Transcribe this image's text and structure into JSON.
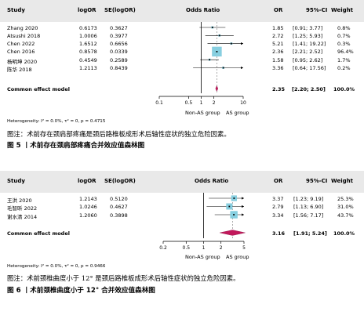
{
  "plots": [
    {
      "headers": {
        "study": "Study",
        "est": "logOR",
        "se": "SE(logOR)",
        "title": "Odds Ratio",
        "or": "OR",
        "ci": "95%-CI",
        "weight": "Weight"
      },
      "summary": {
        "label": "Common effect model",
        "or": "2.35",
        "ci": "[2.20; 2.50]",
        "weight": "100.0%"
      },
      "heterogeneity": "Heterogeneity: I² = 0.0%, τ² = 0, p = 0.4715",
      "axis_ticks": [
        "0.1",
        "0.5",
        "1",
        "2",
        "10"
      ],
      "group_left": "Non-AS group",
      "group_right": "AS group",
      "caption_note": "图注：术前存在颈肩部疼痛是颈后路椎板成形术后轴性症状的独立危险因素。",
      "fig_title": "图 5 丨术前存在颈肩部疼痛合并效应值森林图"
    },
    {
      "headers": {
        "study": "Study",
        "est": "logOR",
        "se": "SE(logOR)",
        "title": "Odds Ratio",
        "or": "OR",
        "ci": "95%-CI",
        "weight": "Weight"
      },
      "summary": {
        "label": "Common effect model",
        "or": "3.16",
        "ci": "[1.91; 5.24]",
        "weight": "100.0%"
      },
      "heterogeneity": "Heterogeneity: I² = 0.0%, τ² = 0, p = 0.9466",
      "axis_ticks": [
        "0.2",
        "0.5",
        "1",
        "2",
        "5"
      ],
      "group_left": "Non-AS group",
      "group_right": "AS group",
      "caption_note": "图注：术前颈椎曲度小于 12° 是颈后路椎板成形术后轴性症状的独立危险因素。",
      "fig_title": "图 6 丨术前颈椎曲度小于 12° 合并效应值森林图"
    }
  ],
  "chart_data": [
    {
      "type": "forest",
      "title": "Odds Ratio",
      "xscale": "log",
      "xlim": [
        0.1,
        10
      ],
      "studies": [
        {
          "name": "Zhang 2020",
          "logOR": "0.6173",
          "se": "0.3627",
          "or": 1.85,
          "lo": 0.91,
          "hi": 3.77,
          "or_text": "1.85",
          "ci_text": "[0.91;  3.77]",
          "weight": "0.8%",
          "w": 0.8
        },
        {
          "name": "Atsushi 2018",
          "logOR": "1.0006",
          "se": "0.3977",
          "or": 2.72,
          "lo": 1.25,
          "hi": 5.93,
          "or_text": "2.72",
          "ci_text": "[1.25;  5.93]",
          "weight": "0.7%",
          "w": 0.7
        },
        {
          "name": "Chen 2022",
          "logOR": "1.6512",
          "se": "0.6656",
          "or": 5.21,
          "lo": 1.41,
          "hi": 19.22,
          "or_text": "5.21",
          "ci_text": "[1.41; 19.22]",
          "weight": "0.3%",
          "w": 0.3
        },
        {
          "name": "Chen 2016",
          "logOR": "0.8578",
          "se": "0.0339",
          "or": 2.36,
          "lo": 2.21,
          "hi": 2.52,
          "or_text": "2.36",
          "ci_text": "[2.21;  2.52]",
          "weight": "96.4%",
          "w": 96.4
        },
        {
          "name": "杨明坤 2020",
          "logOR": "0.4549",
          "se": "0.2589",
          "or": 1.58,
          "lo": 0.95,
          "hi": 2.62,
          "or_text": "1.58",
          "ci_text": "[0.95;  2.62]",
          "weight": "1.7%",
          "w": 1.7
        },
        {
          "name": "陈华 2018",
          "logOR": "1.2113",
          "se": "0.8439",
          "or": 3.36,
          "lo": 0.64,
          "hi": 17.56,
          "or_text": "3.36",
          "ci_text": "[0.64; 17.56]",
          "weight": "0.2%",
          "w": 0.2
        }
      ],
      "pooled": {
        "or": 2.35,
        "lo": 2.2,
        "hi": 2.5
      }
    },
    {
      "type": "forest",
      "title": "Odds Ratio",
      "xscale": "log",
      "xlim": [
        0.2,
        5
      ],
      "studies": [
        {
          "name": "王洪 2020",
          "logOR": "1.2143",
          "se": "0.5120",
          "or": 3.37,
          "lo": 1.23,
          "hi": 9.19,
          "or_text": "3.37",
          "ci_text": "[1.23; 9.19]",
          "weight": "25.3%",
          "w": 25.3
        },
        {
          "name": "毛智昕 2022",
          "logOR": "1.0246",
          "se": "0.4627",
          "or": 2.79,
          "lo": 1.13,
          "hi": 6.9,
          "or_text": "2.79",
          "ci_text": "[1.13; 6.90]",
          "weight": "31.0%",
          "w": 31.0
        },
        {
          "name": "谢水清 2014",
          "logOR": "1.2060",
          "se": "0.3898",
          "or": 3.34,
          "lo": 1.56,
          "hi": 7.17,
          "or_text": "3.34",
          "ci_text": "[1.56; 7.17]",
          "weight": "43.7%",
          "w": 43.7
        }
      ],
      "pooled": {
        "or": 3.16,
        "lo": 1.91,
        "hi": 5.24
      }
    }
  ]
}
